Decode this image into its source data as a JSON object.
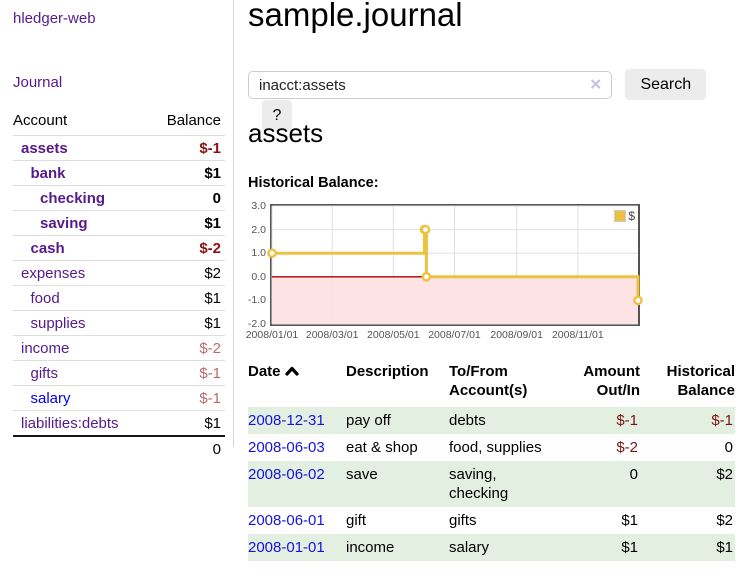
{
  "app": {
    "title": "hledger-web"
  },
  "colors": {
    "link_purple": "#551a8b",
    "link_blue": "#0000ee",
    "negative_strong": "#8b1212",
    "negative_soft": "#bb6a6a",
    "row_green": "#e3efe0",
    "button_gray": "#ececec"
  },
  "sidebar": {
    "journal_label": "Journal",
    "accounts_table": {
      "account_header": "Account",
      "balance_header": "Balance",
      "rows": [
        {
          "name": "assets",
          "balance": "$-1",
          "indent": 1,
          "bold": true,
          "neg": true
        },
        {
          "name": "bank",
          "balance": "$1",
          "indent": 2,
          "bold": true,
          "neg": false
        },
        {
          "name": "checking",
          "balance": "0",
          "indent": 3,
          "bold": true,
          "neg": false
        },
        {
          "name": "saving",
          "balance": "$1",
          "indent": 3,
          "bold": true,
          "neg": false
        },
        {
          "name": "cash",
          "balance": "$-2",
          "indent": 2,
          "bold": true,
          "neg": true
        },
        {
          "name": "expenses",
          "balance": "$2",
          "indent": 1,
          "bold": false,
          "neg": false
        },
        {
          "name": "food",
          "balance": "$1",
          "indent": 2,
          "bold": false,
          "neg": false
        },
        {
          "name": "supplies",
          "balance": "$1",
          "indent": 2,
          "bold": false,
          "neg": false
        },
        {
          "name": "income",
          "balance": "$-2",
          "indent": 1,
          "bold": false,
          "neg": true
        },
        {
          "name": "gifts",
          "balance": "$-1",
          "indent": 2,
          "bold": false,
          "neg": true
        },
        {
          "name": "salary",
          "balance": "$-1",
          "indent": 2,
          "bold": false,
          "neg": true,
          "unvisited": true
        },
        {
          "name": "liabilities:debts",
          "balance": "$1",
          "indent": 1,
          "bold": false,
          "neg": false
        }
      ],
      "total": "0"
    }
  },
  "main": {
    "title": "sample.journal",
    "search": {
      "value": "inacct:assets",
      "clear_icon": "✕",
      "button_label": "Search",
      "help_label": "?"
    },
    "account_heading": "assets",
    "chart_label": "Historical Balance:",
    "register": {
      "headers": {
        "date": "Date",
        "description": "Description",
        "accounts": "To/From Account(s)",
        "amount": "Amount Out/In",
        "balance": "Historical Balance"
      },
      "rows": [
        {
          "date": "2008-12-31",
          "description": "pay off",
          "accounts": "debts",
          "amount": "$-1",
          "balance": "$-1",
          "amount_neg": true,
          "balance_neg": true
        },
        {
          "date": "2008-06-03",
          "description": "eat & shop",
          "accounts": "food, supplies",
          "amount": "$-2",
          "balance": "0",
          "amount_neg": true,
          "balance_neg": false
        },
        {
          "date": "2008-06-02",
          "description": "save",
          "accounts": "saving, checking",
          "amount": "0",
          "balance": "$2",
          "amount_neg": false,
          "balance_neg": false
        },
        {
          "date": "2008-06-01",
          "description": "gift",
          "accounts": "gifts",
          "amount": "$1",
          "balance": "$2",
          "amount_neg": false,
          "balance_neg": false
        },
        {
          "date": "2008-01-01",
          "description": "income",
          "accounts": "salary",
          "amount": "$1",
          "balance": "$1",
          "amount_neg": false,
          "balance_neg": false
        }
      ]
    }
  },
  "chart_data": {
    "type": "line",
    "title": "Historical Balance",
    "step": true,
    "legend": "$",
    "series": [
      {
        "name": "$",
        "color": "#edc240",
        "points": [
          {
            "date": "2008-01-01",
            "value": 1
          },
          {
            "date": "2008-06-01",
            "value": 2
          },
          {
            "date": "2008-06-02",
            "value": 2
          },
          {
            "date": "2008-06-03",
            "value": 0
          },
          {
            "date": "2008-12-31",
            "value": -1
          }
        ]
      }
    ],
    "x_ticks": [
      "2008/01/01",
      "2008/03/01",
      "2008/05/01",
      "2008/07/01",
      "2008/09/01",
      "2008/11/01"
    ],
    "y_ticks": [
      3,
      2,
      1,
      0,
      -1,
      -2
    ],
    "xlim": [
      "2008-01-01",
      "2008-12-31"
    ],
    "ylim": [
      -2,
      3
    ],
    "grid_color": "#e0e0e0",
    "negative_region_color": "#fde1e1",
    "zero_line_color": "#aa0000",
    "legend_position": "top-right"
  }
}
